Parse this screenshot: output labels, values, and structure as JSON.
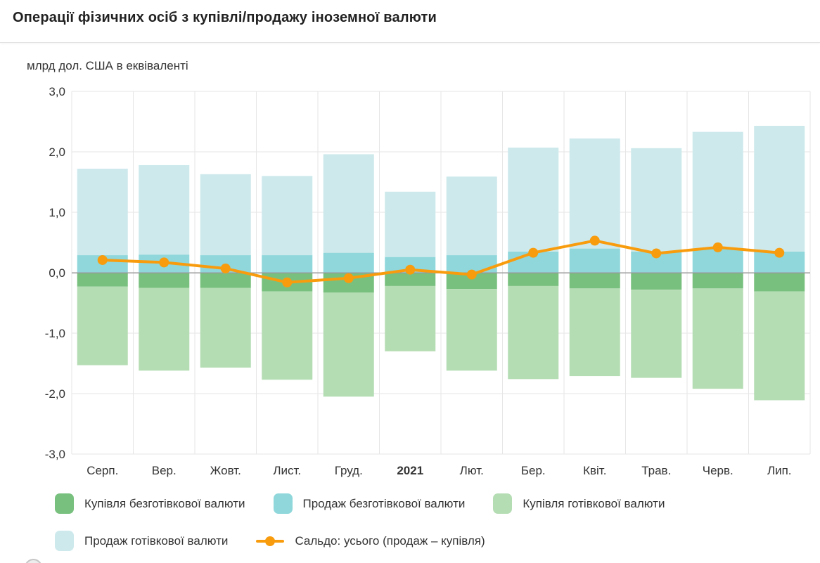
{
  "header": {
    "title": "Операції фізичних осіб з купівлі/продажу іноземної валюти"
  },
  "chart_data": {
    "type": "bar",
    "subtype": "stacked-columns-with-line",
    "title": "Операції фізичних осіб з купівлі/продажу іноземної валюти",
    "ylabel": "млрд дол. США в еквіваленті",
    "xlabel": "",
    "categories": [
      "Серп.",
      "Вер.",
      "Жовт.",
      "Лист.",
      "Груд.",
      "2021",
      "Лют.",
      "Бер.",
      "Квіт.",
      "Трав.",
      "Черв.",
      "Лип."
    ],
    "bold_category": "2021",
    "ylim": [
      -3,
      3
    ],
    "ytick_values": [
      3,
      2,
      1,
      0,
      -1,
      -2,
      -3
    ],
    "ytick_labels": [
      "3,0",
      "2,0",
      "1,0",
      "0,0",
      "-1,0",
      "-2,0",
      "-3,0"
    ],
    "grid": true,
    "legend_position": "bottom",
    "series": [
      {
        "id": "buy-noncash",
        "name": "Купівля безготівкової валюти",
        "type": "column",
        "color": "#78c07e",
        "values": [
          -0.23,
          -0.25,
          -0.25,
          -0.31,
          -0.33,
          -0.22,
          -0.27,
          -0.22,
          -0.26,
          -0.28,
          -0.26,
          -0.31
        ]
      },
      {
        "id": "sale-noncash",
        "name": "Продаж безготівкової валюти",
        "type": "column",
        "color": "#8fd7db",
        "values": [
          0.29,
          0.3,
          0.29,
          0.29,
          0.33,
          0.26,
          0.29,
          0.35,
          0.4,
          0.35,
          0.4,
          0.35
        ]
      },
      {
        "id": "buy-cash",
        "name": "Купівля готівкової валюти",
        "type": "column",
        "color": "#b5ddb4",
        "values": [
          -1.3,
          -1.37,
          -1.32,
          -1.46,
          -1.72,
          -1.08,
          -1.35,
          -1.54,
          -1.45,
          -1.46,
          -1.66,
          -1.8
        ]
      },
      {
        "id": "sale-cash",
        "name": "Продаж готівкової валюти",
        "type": "column",
        "color": "#cde9ec",
        "values": [
          1.43,
          1.48,
          1.34,
          1.31,
          1.63,
          1.08,
          1.3,
          1.72,
          1.82,
          1.71,
          1.93,
          2.08
        ]
      },
      {
        "id": "saldo",
        "name": "Сальдо: усього (продаж – купівля)",
        "type": "line",
        "color": "#f89c0e",
        "values": [
          0.21,
          0.17,
          0.07,
          -0.16,
          -0.09,
          0.05,
          -0.03,
          0.33,
          0.53,
          0.32,
          0.42,
          0.33
        ]
      }
    ]
  },
  "colors": {
    "grid": "#e6e6e6",
    "zero_line": "#9a9a9a",
    "text": "#333333",
    "title": "#212121"
  }
}
